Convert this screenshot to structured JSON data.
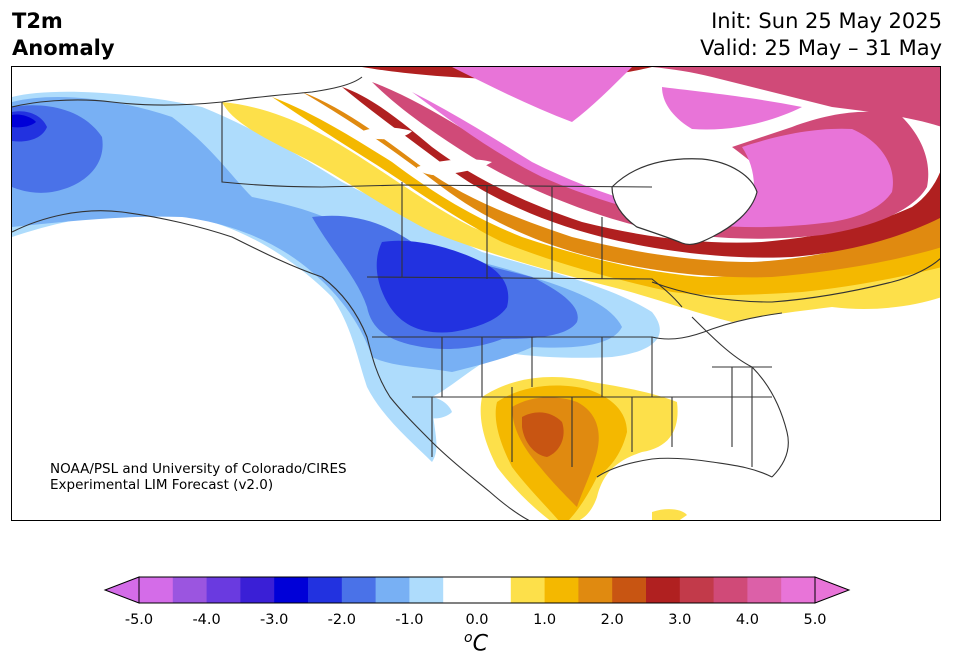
{
  "header": {
    "title_line1": "T2m",
    "title_line2": "Anomaly",
    "init": "Init: Sun 25 May 2025",
    "valid": "Valid: 25 May – 31 May"
  },
  "credit": {
    "line1": "NOAA/PSL and University of Colorado/CIRES",
    "line2": "Experimental LIM Forecast (v2.0)"
  },
  "colorbar": {
    "units_sup": "o",
    "units_main": "C",
    "tick_labels": [
      "-5.0",
      "-4.0",
      "-3.0",
      "-2.0",
      "-1.0",
      "0.0",
      "1.0",
      "2.0",
      "3.0",
      "4.0",
      "5.0"
    ],
    "colors": [
      "#d46ce8",
      "#9b55e0",
      "#6a3ae0",
      "#3a1fd6",
      "#0000d8",
      "#2232e0",
      "#4a72e8",
      "#78b0f4",
      "#aedcfc",
      "#ffffff",
      "#ffffff",
      "#fde04a",
      "#f4b800",
      "#e08a10",
      "#c85512",
      "#b02020",
      "#c23a4a",
      "#d04a78",
      "#dc60a8",
      "#e874d8"
    ],
    "extend_low": "#d46ce8",
    "extend_high": "#e874d8"
  },
  "map": {
    "colors": {
      "ocean": "#ffffff",
      "land": "#ffffff",
      "cold_1": "#aedcfc",
      "cold_2": "#78b0f4",
      "cold_3": "#4a72e8",
      "cold_4": "#2232e0",
      "cold_5": "#0000d8",
      "warm_1": "#fde04a",
      "warm_2": "#f4b800",
      "warm_3": "#e08a10",
      "warm_4": "#c85512",
      "warm_5": "#b02020",
      "warm_6": "#c23a4a",
      "warm_7": "#d04a78",
      "warm_8": "#dc60a8",
      "warm_9": "#e874d8",
      "border": "#333333"
    }
  }
}
